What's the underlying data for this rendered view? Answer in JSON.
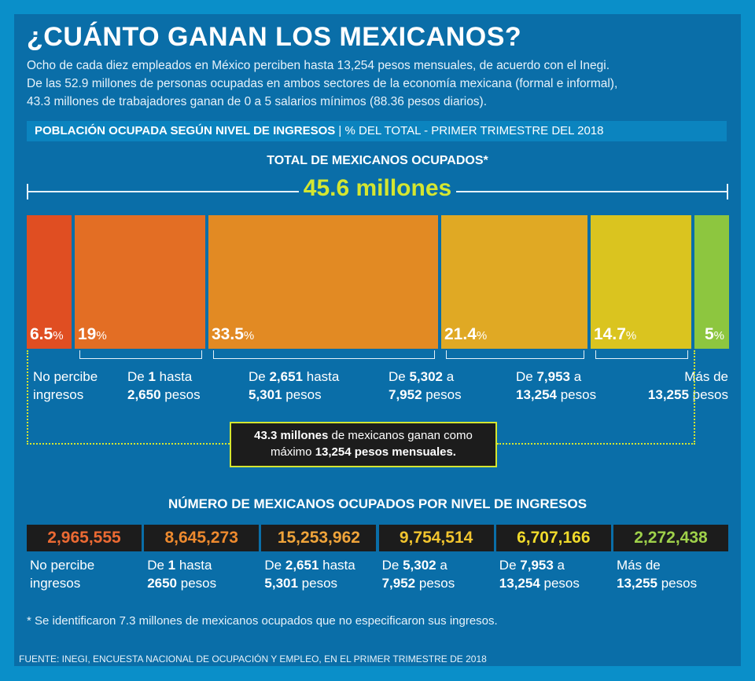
{
  "title": "¿CUÁNTO GANAN LOS MEXICANOS?",
  "intro": [
    "Ocho de cada diez empleados en México perciben hasta 13,254 pesos mensuales, de acuerdo con el Inegi.",
    "De las 52.9 millones de personas ocupadas en ambos sectores de la economía mexicana (formal e informal),",
    "43.3 millones de trabajadores ganan de 0 a 5 salarios mínimos (88.36 pesos diarios)."
  ],
  "section_header": {
    "bold": "POBLACIÓN OCUPADA SEGÚN NIVEL DE INGRESOS",
    "separator": " | ",
    "rest": "% DEL TOTAL - PRIMER TRIMESTRE DEL 2018"
  },
  "total_label": "TOTAL DE MEXICANOS OCUPADOS*",
  "total_value": "45.6 millones",
  "callout": {
    "line1_bold": "43.3 millones",
    "line1_rest": " de mexicanos ganan como",
    "line2_pre": "máximo ",
    "line2_bold": "13,254 pesos mensuales."
  },
  "numbers_title": "NÚMERO DE MEXICANOS OCUPADOS POR NIVEL DE INGRESOS",
  "footnote": "* Se identificaron 7.3 millones de mexicanos ocupados que no especificaron sus ingresos.",
  "source": "FUENTE: INEGI, ENCUESTA NACIONAL DE OCUPACIÓN Y EMPLEO, EN EL PRIMER TRIMESTRE DE 2018",
  "chart_data": {
    "type": "bar",
    "categories": [
      "No percibe ingresos",
      "De 1 hasta 2,650 pesos",
      "De 2,651 hasta 5,301 pesos",
      "De 5,302 a 7,952 pesos",
      "De 7,953 a 13,254 pesos",
      "Más de 13,255 pesos"
    ],
    "percent_values": [
      6.5,
      19,
      33.5,
      21.4,
      14.7,
      5
    ],
    "percent_display": [
      "6.5",
      "19",
      "33.5",
      "21.4",
      "14.7",
      "5"
    ],
    "percent_unit": "%",
    "counts": [
      "2,965,555",
      "8,645,273",
      "15,253,962",
      "9,754,514",
      "6,707,166",
      "2,272,438"
    ],
    "colors": [
      "#e04e22",
      "#e36e24",
      "#e28a23",
      "#e0a924",
      "#dac41f",
      "#8dc63f"
    ],
    "count_colors": [
      "#ec6a33",
      "#ee8a2e",
      "#f0a43a",
      "#f2c42e",
      "#f0da2b",
      "#9fd14a"
    ],
    "labels": [
      {
        "pre": "No percibe",
        "bold": "",
        "post": "",
        "line2_bold": "",
        "line2": "ingresos"
      },
      {
        "pre": "De ",
        "bold": "1",
        "post": " hasta",
        "line2_bold": "2,650",
        "line2": " pesos"
      },
      {
        "pre": "De ",
        "bold": "2,651",
        "post": " hasta",
        "line2_bold": "5,301",
        "line2": " pesos"
      },
      {
        "pre": "De ",
        "bold": "5,302",
        "post": " a",
        "line2_bold": "7,952",
        "line2": " pesos"
      },
      {
        "pre": "De ",
        "bold": "7,953",
        "post": " a",
        "line2_bold": "13,254",
        "line2": " pesos"
      },
      {
        "pre": "Más de",
        "bold": "",
        "post": "",
        "line2_bold": "13,255",
        "line2": " pesos"
      }
    ],
    "count_labels": [
      {
        "pre": "No percibe",
        "bold": "",
        "post": "",
        "line2_bold": "",
        "line2": "ingresos"
      },
      {
        "pre": "De ",
        "bold": "1",
        "post": " hasta",
        "line2_bold": "2650",
        "line2": " pesos"
      },
      {
        "pre": "De ",
        "bold": "2,651",
        "post": " hasta",
        "line2_bold": "5,301",
        "line2": " pesos"
      },
      {
        "pre": "De ",
        "bold": "5,302",
        "post": " a",
        "line2_bold": "7,952",
        "line2": " pesos"
      },
      {
        "pre": "De ",
        "bold": "7,953",
        "post": " a",
        "line2_bold": "13,254",
        "line2": " pesos"
      },
      {
        "pre": "Más de",
        "bold": "",
        "post": "",
        "line2_bold": "13,255",
        "line2": " pesos"
      }
    ]
  }
}
